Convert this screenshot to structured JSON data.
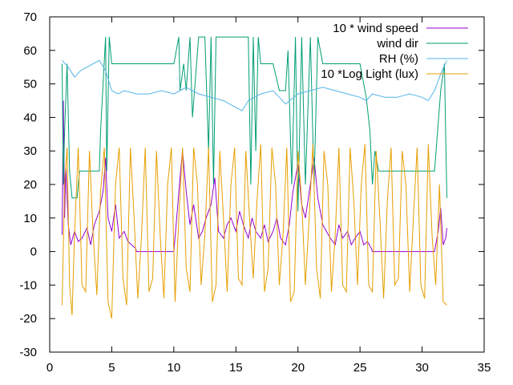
{
  "chart_data": {
    "type": "line",
    "title": "",
    "xlabel": "",
    "ylabel": "",
    "xlim": [
      0,
      35
    ],
    "ylim": [
      -30,
      70
    ],
    "xticks": [
      0,
      5,
      10,
      15,
      20,
      25,
      30,
      35
    ],
    "yticks": [
      -30,
      -20,
      -10,
      0,
      10,
      20,
      30,
      40,
      50,
      60,
      70
    ],
    "grid": false,
    "legend": "top-right",
    "series": [
      {
        "name": "10 * wind speed",
        "color": "#9400d3",
        "x": [
          1.0,
          1.1,
          1.2,
          1.3,
          1.5,
          1.7,
          2.0,
          2.3,
          2.6,
          3.0,
          3.3,
          3.6,
          4.0,
          4.3,
          4.5,
          4.7,
          5.0,
          5.3,
          5.6,
          6.0,
          6.3,
          6.6,
          6.9,
          7.0,
          7.5,
          8.0,
          9.0,
          10.0,
          10.3,
          10.5,
          10.7,
          11.0,
          11.3,
          11.6,
          12.0,
          12.3,
          12.6,
          13.0,
          13.3,
          13.6,
          14.0,
          14.3,
          14.6,
          15.0,
          15.3,
          15.6,
          16.0,
          16.3,
          16.6,
          17.0,
          17.3,
          17.6,
          18.0,
          18.3,
          18.6,
          19.0,
          19.3,
          19.6,
          20.0,
          20.3,
          20.6,
          21.0,
          21.3,
          21.6,
          22.0,
          22.3,
          22.6,
          23.0,
          23.3,
          23.6,
          24.0,
          24.3,
          24.6,
          25.0,
          25.3,
          25.6,
          25.9,
          26.0,
          27.0,
          28.0,
          29.0,
          30.0,
          31.0,
          31.3,
          31.5,
          31.7,
          31.9,
          32.0
        ],
        "y": [
          5,
          45,
          10,
          25,
          8,
          2,
          6,
          3,
          4,
          7,
          2,
          8,
          12,
          18,
          28,
          10,
          6,
          14,
          4,
          6,
          3,
          2,
          1,
          0,
          0,
          0,
          0,
          0,
          13,
          22,
          30,
          18,
          8,
          14,
          4,
          6,
          10,
          14,
          22,
          6,
          4,
          8,
          10,
          6,
          12,
          8,
          4,
          10,
          6,
          4,
          8,
          3,
          6,
          10,
          4,
          2,
          8,
          18,
          26,
          14,
          10,
          20,
          28,
          16,
          8,
          6,
          4,
          2,
          8,
          4,
          6,
          2,
          4,
          6,
          2,
          3,
          1,
          0,
          0,
          0,
          0,
          0,
          0,
          6,
          13,
          2,
          4,
          7
        ]
      },
      {
        "name": "wind dir",
        "color": "#009e73",
        "x": [
          1.0,
          1.1,
          1.2,
          1.4,
          1.6,
          1.8,
          2.2,
          2.4,
          2.6,
          3.0,
          3.5,
          4.0,
          4.1,
          4.3,
          4.5,
          4.6,
          4.8,
          5.0,
          6.0,
          7.0,
          8.0,
          9.0,
          10.0,
          10.4,
          10.5,
          10.8,
          11.0,
          11.3,
          11.5,
          12.0,
          12.5,
          12.8,
          13.0,
          13.2,
          13.4,
          13.6,
          14.0,
          14.5,
          15.0,
          15.5,
          16.0,
          16.2,
          16.4,
          16.6,
          16.8,
          17.0,
          17.5,
          18.0,
          18.5,
          19.0,
          19.2,
          19.5,
          19.8,
          20.0,
          20.3,
          20.6,
          21.0,
          21.3,
          21.6,
          22.0,
          22.5,
          23.0,
          24.0,
          25.0,
          25.5,
          25.8,
          26.0,
          26.2,
          26.5,
          27.0,
          28.0,
          29.0,
          30.0,
          31.0,
          31.5,
          31.8,
          32.0
        ],
        "y": [
          56,
          20,
          36,
          56,
          24,
          16,
          16,
          24,
          24,
          24,
          24,
          24,
          36,
          50,
          64,
          24,
          64,
          56,
          56,
          56,
          56,
          56,
          56,
          64,
          48,
          56,
          48,
          64,
          40,
          64,
          64,
          30,
          64,
          20,
          64,
          64,
          64,
          64,
          64,
          64,
          64,
          20,
          64,
          30,
          64,
          56,
          56,
          56,
          48,
          48,
          60,
          20,
          64,
          12,
          64,
          20,
          64,
          20,
          64,
          56,
          56,
          56,
          56,
          56,
          46,
          36,
          20,
          30,
          24,
          24,
          24,
          24,
          24,
          24,
          48,
          56,
          16
        ]
      },
      {
        "name": "RH (%)",
        "color": "#56b4e9",
        "x": [
          1.0,
          1.5,
          2.0,
          2.5,
          3.0,
          3.5,
          4.0,
          4.5,
          5.0,
          5.5,
          6.0,
          7.0,
          8.0,
          9.0,
          10.0,
          10.5,
          11.0,
          12.0,
          13.0,
          14.0,
          15.0,
          15.5,
          16.0,
          17.0,
          18.0,
          18.5,
          19.0,
          20.0,
          21.0,
          22.0,
          23.0,
          24.0,
          25.0,
          25.5,
          26.0,
          27.0,
          28.0,
          29.0,
          30.0,
          30.5,
          31.0,
          31.5,
          32.0
        ],
        "y": [
          57,
          55,
          52,
          54,
          55,
          56,
          57,
          54,
          48,
          47,
          48,
          47,
          47,
          48,
          47,
          48,
          49,
          47,
          46,
          45,
          43,
          42,
          45,
          47,
          48,
          46,
          44,
          47,
          48,
          49,
          48,
          47,
          46,
          45,
          47,
          46,
          46,
          47,
          46,
          45,
          48,
          53,
          57
        ]
      },
      {
        "name": "10 *Log Light (lux)",
        "color": "#e69f00",
        "x": [
          1.0,
          1.2,
          1.4,
          1.6,
          1.8,
          2.0,
          2.3,
          2.6,
          2.9,
          3.2,
          3.5,
          3.8,
          4.1,
          4.4,
          4.7,
          5.0,
          5.3,
          5.6,
          5.9,
          6.2,
          6.5,
          6.8,
          7.1,
          7.4,
          7.7,
          8.0,
          8.3,
          8.6,
          8.9,
          9.2,
          9.5,
          9.8,
          10.1,
          10.4,
          10.7,
          11.0,
          11.3,
          11.6,
          11.9,
          12.2,
          12.5,
          12.8,
          13.1,
          13.4,
          13.7,
          14.0,
          14.3,
          14.6,
          14.9,
          15.2,
          15.5,
          15.8,
          16.1,
          16.4,
          16.7,
          17.0,
          17.3,
          17.6,
          17.9,
          18.2,
          18.5,
          18.8,
          19.1,
          19.4,
          19.7,
          20.0,
          20.3,
          20.6,
          20.9,
          21.2,
          21.5,
          21.8,
          22.1,
          22.4,
          22.7,
          23.0,
          23.3,
          23.6,
          23.9,
          24.2,
          24.5,
          24.8,
          25.1,
          25.4,
          25.7,
          26.0,
          26.3,
          26.6,
          26.9,
          27.2,
          27.5,
          27.8,
          28.1,
          28.4,
          28.7,
          29.0,
          29.3,
          29.6,
          29.9,
          30.2,
          30.5,
          30.8,
          31.1,
          31.4,
          31.7,
          32.0
        ],
        "y": [
          -16,
          20,
          31,
          -10,
          -19,
          5,
          31,
          -10,
          -12,
          30,
          5,
          -13,
          18,
          31,
          -15,
          -20,
          20,
          31,
          -8,
          -16,
          31,
          10,
          -14,
          5,
          31,
          -12,
          -8,
          30,
          5,
          -14,
          20,
          31,
          -15,
          10,
          31,
          -5,
          -12,
          31,
          20,
          -10,
          5,
          31,
          -15,
          -10,
          30,
          10,
          -12,
          20,
          31,
          -8,
          -10,
          30,
          10,
          -8,
          15,
          32,
          -12,
          -5,
          31,
          20,
          -10,
          5,
          31,
          -15,
          -12,
          30,
          15,
          -10,
          10,
          32,
          -5,
          -14,
          30,
          20,
          -12,
          5,
          31,
          -10,
          -12,
          31,
          15,
          -10,
          20,
          32,
          -10,
          -12,
          30,
          10,
          -14,
          15,
          31,
          -10,
          -8,
          30,
          20,
          -12,
          10,
          31,
          -10,
          -14,
          32,
          5,
          -10,
          20,
          -15,
          -16
        ]
      }
    ]
  }
}
